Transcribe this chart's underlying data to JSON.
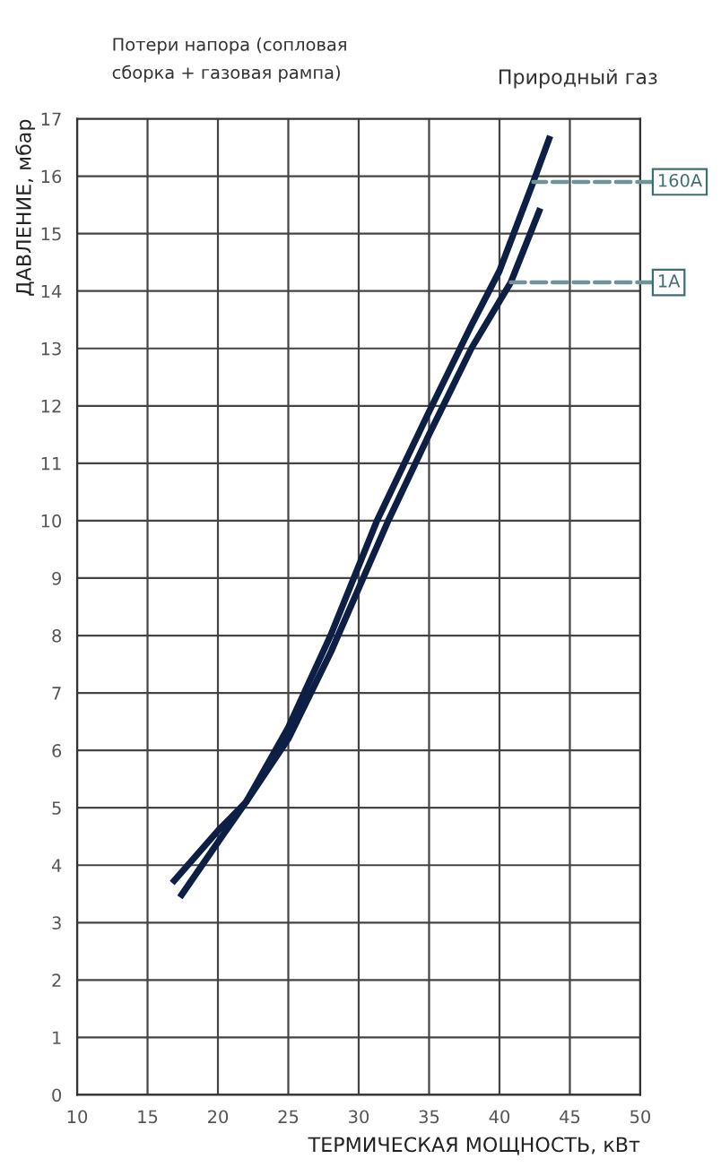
{
  "chart_data": {
    "type": "line",
    "title": "Потери напора (сопловая\nсборка + газовая рампа)",
    "subtitle": "Природный газ",
    "xlabel": "ТЕРМИЧЕСКАЯ МОЩНОСТЬ, кВт",
    "ylabel": "ДАВЛЕНИЕ, мбар",
    "series": [
      {
        "color": "#0d1f45",
        "x": [
          17.3,
          20,
          22,
          25,
          28,
          31.3,
          35,
          38,
          40,
          42.4,
          43.6
        ],
        "values": [
          3.44,
          4.4,
          5.1,
          6.4,
          8.0,
          10.0,
          11.9,
          13.4,
          14.35,
          15.9,
          16.7
        ]
      },
      {
        "color": "#0d1f45",
        "x": [
          16.75,
          20,
          22,
          25,
          28,
          32.1,
          35,
          38,
          40.8,
          42.9
        ],
        "values": [
          3.69,
          4.6,
          5.1,
          6.2,
          7.7,
          10.0,
          11.5,
          13.0,
          14.15,
          15.44
        ]
      }
    ],
    "annotations": [
      {
        "text": "160A",
        "x": 42.4,
        "y": 15.9
      },
      {
        "text": "1A",
        "x": 40.8,
        "y": 14.15
      }
    ],
    "xlim": [
      10,
      50
    ],
    "xticks": [
      10,
      15,
      20,
      25,
      30,
      35,
      40,
      45,
      50
    ],
    "ylim": [
      0,
      17
    ],
    "yticks": [
      0,
      1,
      2,
      3,
      4,
      5,
      6,
      7,
      8,
      9,
      10,
      11,
      12,
      13,
      14,
      15,
      16,
      17
    ],
    "grid": true,
    "line_style": "solid",
    "marker": "none",
    "legend": false
  }
}
